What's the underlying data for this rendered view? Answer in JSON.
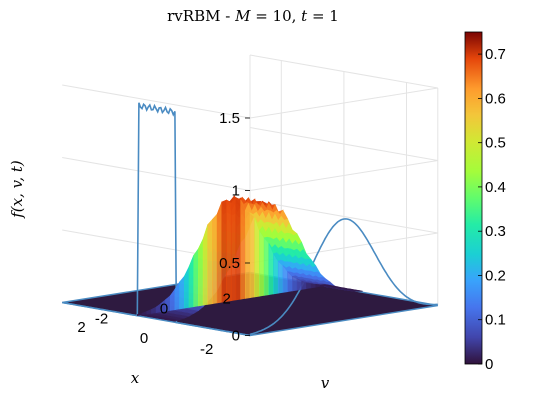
{
  "chart_data": {
    "type": "surface3d",
    "title": "rvRBM - M = 10, t = 1",
    "title_parts": {
      "method": "rvRBM - ",
      "m_sym": "M",
      "m_eq": " = 10, ",
      "t_sym": "t",
      "t_eq": " = 1"
    },
    "xlabel": "x",
    "ylabel": "v",
    "zlabel": "f(x, v, t)",
    "x_ticks": [
      "-2",
      "0",
      "2"
    ],
    "y_ticks": [
      "-2",
      "0",
      "2"
    ],
    "z_ticks": [
      "0",
      "0.5",
      "1",
      "1.5"
    ],
    "xlim": [
      -3,
      3
    ],
    "ylim": [
      -3,
      3
    ],
    "zlim": [
      0,
      1.5
    ],
    "colorbar": {
      "ticks": [
        "0",
        "0.1",
        "0.2",
        "0.3",
        "0.4",
        "0.5",
        "0.6",
        "0.7"
      ],
      "lim": [
        0,
        0.75
      ]
    },
    "surface": {
      "x_range": [
        -0.6,
        0.6
      ],
      "v_profile": "gaussian",
      "v_sigma": 1.0,
      "peak": 0.7
    },
    "projection_x_wall": {
      "profile": "box",
      "x_range": [
        -0.6,
        0.6
      ],
      "height": 1.45
    },
    "projection_v_wall": {
      "profile": "gaussian",
      "v_sigma": 1.0,
      "peak": 0.7
    },
    "grid": true,
    "colors": {
      "surface_line": "#4a8bc2",
      "floor": "#2e1a40",
      "wall_line": "#4a8bc2"
    }
  }
}
